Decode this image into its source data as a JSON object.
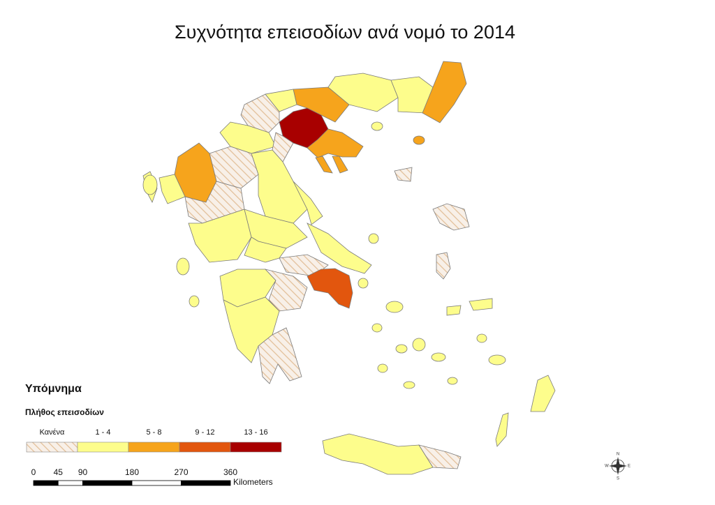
{
  "title": "Συχνότητα επεισοδίων ανά νομό το 2014",
  "legend": {
    "title": "Υπόμνημα",
    "subtitle": "Πλήθος επεισοδίων",
    "classes": [
      {
        "label": "Κανένα",
        "color": "#f6ece2",
        "hatched": true
      },
      {
        "label": "1 - 4",
        "color": "#fdfd8c"
      },
      {
        "label": "5 - 8",
        "color": "#f6a41c"
      },
      {
        "label": "9 - 12",
        "color": "#e2560e"
      },
      {
        "label": "13 - 16",
        "color": "#a80000"
      }
    ]
  },
  "scale": {
    "ticks": [
      0,
      45,
      90,
      180,
      270,
      360
    ],
    "unit": "Kilometers"
  },
  "compass": [
    "N",
    "E",
    "S",
    "W"
  ]
}
